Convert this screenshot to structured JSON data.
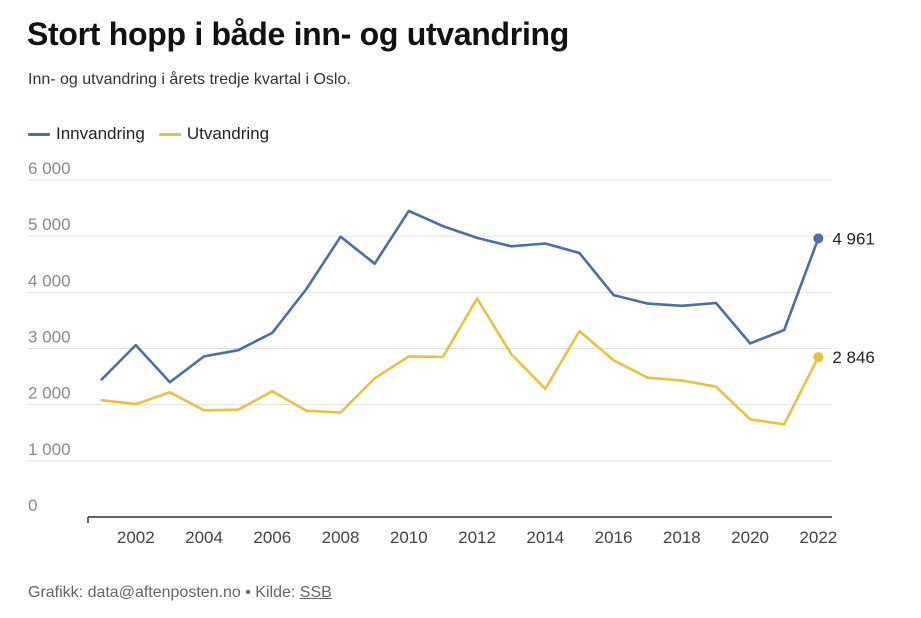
{
  "header": {
    "title": "Stort hopp i både inn- og utvandring",
    "subtitle": "Inn- og utvandring i årets tredje kvartal i Oslo."
  },
  "footer": {
    "credit": "Grafikk: data@aftenposten.no • Kilde: ",
    "source_link": "SSB"
  },
  "colors": {
    "innvandring": "#4a6ea9",
    "utvandring": "#e8c33a",
    "grid": "#e0e0e0",
    "axis": "#333333",
    "tick_label": "#8a8a8a"
  },
  "chart_data": {
    "type": "line",
    "title": "Stort hopp i både inn- og utvandring",
    "subtitle": "Inn- og utvandring i årets tredje kvartal i Oslo.",
    "xlabel": "",
    "ylabel": "",
    "x": [
      2001,
      2002,
      2003,
      2004,
      2005,
      2006,
      2007,
      2008,
      2009,
      2010,
      2011,
      2012,
      2013,
      2014,
      2015,
      2016,
      2017,
      2018,
      2019,
      2020,
      2021,
      2022
    ],
    "x_ticks": [
      2002,
      2004,
      2006,
      2008,
      2010,
      2012,
      2014,
      2016,
      2018,
      2020,
      2022
    ],
    "x_tick_labels": [
      "2002",
      "2004",
      "2006",
      "2008",
      "2010",
      "2012",
      "2014",
      "2016",
      "2018",
      "2020",
      "2022"
    ],
    "xlim": [
      2000.6,
      2022.4
    ],
    "ylim": [
      0,
      6000
    ],
    "y_ticks": [
      0,
      1000,
      2000,
      3000,
      4000,
      5000,
      6000
    ],
    "y_tick_labels": [
      "0",
      "1 000",
      "2 000",
      "3 000",
      "4 000",
      "5 000",
      "6 000"
    ],
    "grid": true,
    "legend_position": "top-left",
    "series": [
      {
        "name": "Innvandring",
        "key": "innvandring",
        "values": [
          2450,
          3060,
          2400,
          2860,
          2970,
          3280,
          4060,
          4990,
          4510,
          5450,
          5180,
          4970,
          4820,
          4870,
          4700,
          3950,
          3800,
          3760,
          3810,
          3090,
          3330,
          4961
        ],
        "end_label": "4 961"
      },
      {
        "name": "Utvandring",
        "key": "utvandring",
        "values": [
          2080,
          2010,
          2220,
          1900,
          1910,
          2240,
          1890,
          1860,
          2470,
          2860,
          2850,
          3890,
          2900,
          2280,
          3310,
          2790,
          2480,
          2430,
          2320,
          1740,
          1650,
          2846
        ],
        "end_label": "2 846"
      }
    ]
  }
}
